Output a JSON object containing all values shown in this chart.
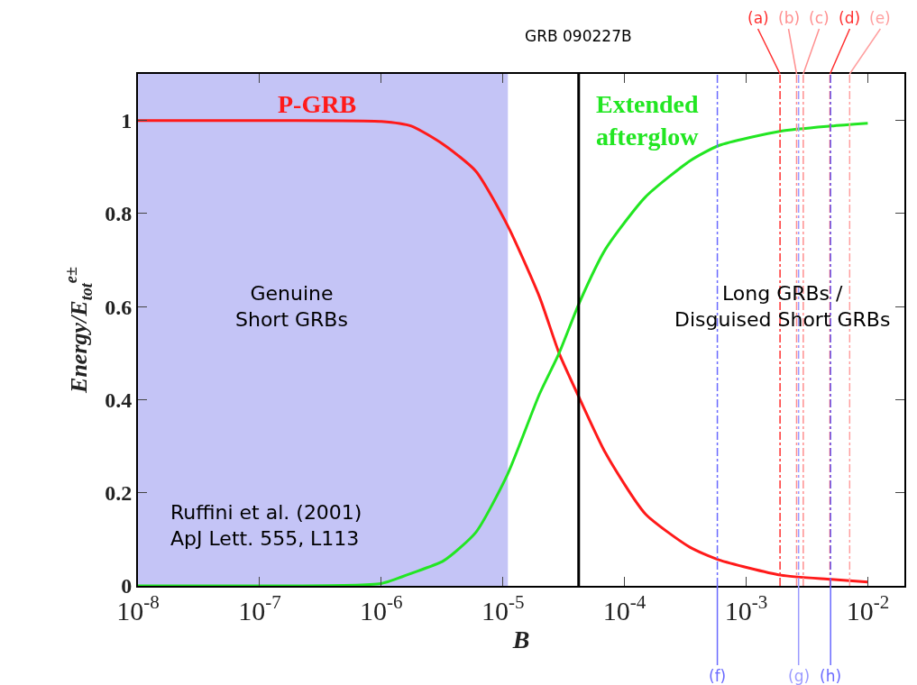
{
  "chart_data": {
    "type": "line",
    "xlabel": "B",
    "ylabel": "Energy/E$_{tot}$$^{e±}$",
    "log": "x",
    "legend": false,
    "grid": false,
    "marker": "none",
    "line_style": "solid",
    "xlim": [
      1e-08,
      0.02
    ],
    "xticks": [
      {
        "value": 1e-08,
        "label": "10$^{-8}$"
      },
      {
        "value": 1e-07,
        "label": "10$^{-7}$"
      },
      {
        "value": 1e-06,
        "label": "10$^{-6}$"
      },
      {
        "value": 1e-05,
        "label": "10$^{-5}$"
      },
      {
        "value": 0.0001,
        "label": "10$^{-4}$"
      },
      {
        "value": 0.001,
        "label": "10$^{-3}$"
      },
      {
        "value": 0.01,
        "label": "10$^{-2}$"
      }
    ],
    "ylim": [
      0,
      1.1
    ],
    "yticks": [
      0,
      0.2,
      0.4,
      0.6,
      0.8,
      1
    ],
    "x": [
      1e-08,
      1e-07,
      1e-06,
      1.77e-06,
      3.26e-06,
      6e-06,
      1.09e-05,
      2e-05,
      2.9e-05,
      4.25e-05,
      7e-05,
      0.000148,
      0.000345,
      0.000596,
      0.00193,
      0.005,
      0.01
    ],
    "series": [
      {
        "name": "P-GRB",
        "color": "#ff1a1a",
        "values": [
          1,
          1,
          0.998,
          0.988,
          0.948,
          0.891,
          0.775,
          0.621,
          0.5,
          0.404,
          0.285,
          0.155,
          0.083,
          0.056,
          0.023,
          0.014,
          0.008
        ]
      },
      {
        "name": "Extended\nafterglow",
        "color": "#22e622",
        "values": [
          0,
          0,
          0.005,
          0.027,
          0.054,
          0.115,
          0.239,
          0.412,
          0.5,
          0.608,
          0.724,
          0.835,
          0.913,
          0.946,
          0.977,
          0.988,
          0.994
        ]
      }
    ],
    "ref_lines": [
      {
        "axis": "x",
        "value": 4.2e-05,
        "label": "GRB 090227B",
        "color": "#000000",
        "line_style": "solid"
      },
      {
        "axis": "x",
        "value": 0.00058,
        "label": "(f)",
        "color": "#6a6aff",
        "line_style": "dashed"
      },
      {
        "axis": "x",
        "value": 0.0019,
        "label": "(a)",
        "color": "#ff3030",
        "line_style": "dashed"
      },
      {
        "axis": "x",
        "value": 0.0026,
        "label": "(b)",
        "color": "#ff9090",
        "line_style": "dashed"
      },
      {
        "axis": "x",
        "value": 0.0027,
        "label": "(g)",
        "color": "#9a9aff",
        "line_style": "dashed"
      },
      {
        "axis": "x",
        "value": 0.00295,
        "label": "(c)",
        "color": "#ff9090",
        "line_style": "dashed"
      },
      {
        "axis": "x",
        "value": 0.0049,
        "label": "(d)",
        "color": "#ff3030",
        "line_style": "dashed"
      },
      {
        "axis": "x",
        "value": 0.00495,
        "label": "(h)",
        "color": "#6a6aff",
        "line_style": "dashed"
      },
      {
        "axis": "x",
        "value": 0.0071,
        "label": "(e)",
        "color": "#ffa0a0",
        "line_style": "dashed"
      }
    ],
    "bands": [
      {
        "axis": "x",
        "from": 1e-08,
        "to": 1.1e-05,
        "color": "#c4c4f6"
      }
    ],
    "annotations": [
      "Genuine\nShort GRBs",
      "Long GRBs /\nDisguised Short GRBs",
      "Ruffini et al. (2001)\nApJ Lett. 555, L113"
    ]
  }
}
